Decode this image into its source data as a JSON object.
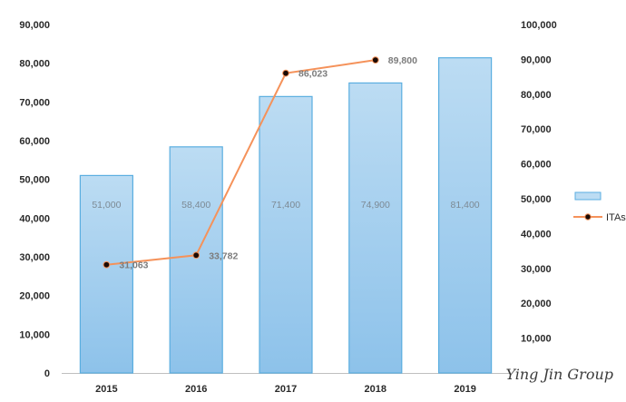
{
  "chart_data": {
    "type": "bar",
    "categories": [
      "2015",
      "2016",
      "2017",
      "2018",
      "2019"
    ],
    "series": [
      {
        "name": "",
        "chart_type": "bar",
        "axis": "left",
        "values": [
          51000,
          58400,
          71400,
          74900,
          81400
        ],
        "data_labels": [
          "51,000",
          "58,400",
          "71,400",
          "74,900",
          "81,400"
        ],
        "color": "#a9d2f0"
      },
      {
        "name": "ITAs",
        "chart_type": "line",
        "axis": "right",
        "values": [
          31063,
          33782,
          86023,
          89800,
          null
        ],
        "data_labels": [
          "31,063",
          "33,782",
          "86,023",
          "89,800"
        ],
        "color": "#f5925a",
        "marker_color": "#1a0a05"
      }
    ],
    "left_axis": {
      "ylim": [
        0,
        90000
      ],
      "ticks": [
        0,
        10000,
        20000,
        30000,
        40000,
        50000,
        60000,
        70000,
        80000,
        90000
      ],
      "tick_labels": [
        "0",
        "10,000",
        "20,000",
        "30,000",
        "40,000",
        "50,000",
        "60,000",
        "70,000",
        "80,000",
        "90,000"
      ]
    },
    "right_axis": {
      "ylim": [
        0,
        100000
      ],
      "ticks": [
        10000,
        20000,
        30000,
        40000,
        50000,
        60000,
        70000,
        80000,
        90000,
        100000
      ],
      "tick_labels": [
        "10,000",
        "20,000",
        "30,000",
        "40,000",
        "50,000",
        "60,000",
        "70,000",
        "80,000",
        "90,000",
        "100,000"
      ]
    },
    "title": "",
    "xlabel": "",
    "ylabel": "",
    "grid": false,
    "legend": {
      "placement": "right",
      "entries": [
        "",
        "ITAs"
      ]
    },
    "watermark": "Ying Jin Group"
  }
}
